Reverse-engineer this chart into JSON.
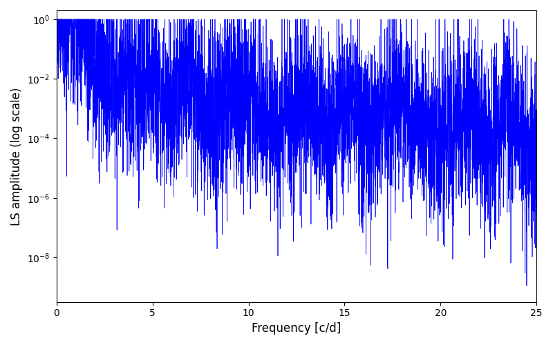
{
  "xlabel": "Frequency [c/d]",
  "ylabel": "LS amplitude (log scale)",
  "line_color": "#0000ff",
  "xlim": [
    0,
    25
  ],
  "ylim_log": [
    -9.5,
    0.3
  ],
  "xticks": [
    0,
    5,
    10,
    15,
    20,
    25
  ],
  "figsize": [
    8.0,
    5.0
  ],
  "dpi": 100,
  "seed": 12345,
  "n_points": 5000,
  "freq_max": 25.0,
  "linewidth": 0.5,
  "peak_freq": 0.5,
  "peak_val": 0.65
}
